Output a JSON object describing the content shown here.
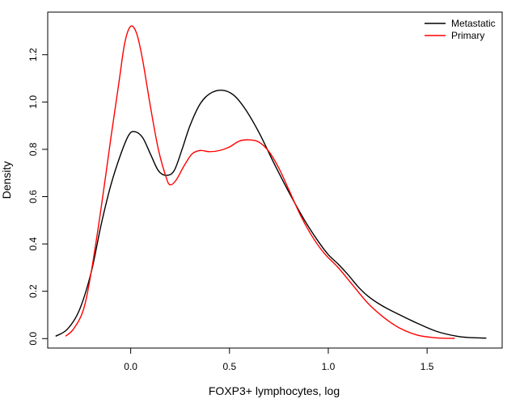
{
  "chart_data": {
    "type": "line",
    "title": "",
    "xlabel": "FOXP3+ lymphocytes, log",
    "ylabel": "Density",
    "xlim": [
      -0.42,
      1.88
    ],
    "ylim": [
      -0.04,
      1.38
    ],
    "x_ticks": [
      0.0,
      0.5,
      1.0,
      1.5
    ],
    "x_tick_labels": [
      "0.0",
      "0.5",
      "1.0",
      "1.5"
    ],
    "y_ticks": [
      0.0,
      0.2,
      0.4,
      0.6,
      0.8,
      1.0,
      1.2
    ],
    "y_tick_labels": [
      "0.0",
      "0.2",
      "0.4",
      "0.6",
      "0.8",
      "1.0",
      "1.2"
    ],
    "grid": false,
    "legend_position": "top-right",
    "series": [
      {
        "name": "Metastatic",
        "color": "#000000",
        "points": [
          [
            -0.38,
            0.01
          ],
          [
            -0.32,
            0.04
          ],
          [
            -0.26,
            0.12
          ],
          [
            -0.2,
            0.28
          ],
          [
            -0.15,
            0.48
          ],
          [
            -0.1,
            0.65
          ],
          [
            -0.05,
            0.78
          ],
          [
            -0.01,
            0.86
          ],
          [
            0.02,
            0.875
          ],
          [
            0.06,
            0.85
          ],
          [
            0.1,
            0.78
          ],
          [
            0.14,
            0.71
          ],
          [
            0.18,
            0.69
          ],
          [
            0.22,
            0.71
          ],
          [
            0.26,
            0.8
          ],
          [
            0.3,
            0.9
          ],
          [
            0.35,
            0.99
          ],
          [
            0.4,
            1.035
          ],
          [
            0.46,
            1.05
          ],
          [
            0.52,
            1.03
          ],
          [
            0.58,
            0.97
          ],
          [
            0.65,
            0.87
          ],
          [
            0.72,
            0.75
          ],
          [
            0.8,
            0.62
          ],
          [
            0.88,
            0.5
          ],
          [
            0.95,
            0.41
          ],
          [
            1.0,
            0.355
          ],
          [
            1.05,
            0.315
          ],
          [
            1.1,
            0.27
          ],
          [
            1.15,
            0.22
          ],
          [
            1.2,
            0.18
          ],
          [
            1.27,
            0.14
          ],
          [
            1.35,
            0.105
          ],
          [
            1.45,
            0.065
          ],
          [
            1.55,
            0.03
          ],
          [
            1.65,
            0.01
          ],
          [
            1.72,
            0.004
          ],
          [
            1.8,
            0.002
          ]
        ]
      },
      {
        "name": "Primary",
        "color": "#ff0000",
        "points": [
          [
            -0.33,
            0.01
          ],
          [
            -0.29,
            0.04
          ],
          [
            -0.24,
            0.12
          ],
          [
            -0.2,
            0.28
          ],
          [
            -0.15,
            0.55
          ],
          [
            -0.1,
            0.85
          ],
          [
            -0.06,
            1.08
          ],
          [
            -0.03,
            1.25
          ],
          [
            0.0,
            1.32
          ],
          [
            0.03,
            1.29
          ],
          [
            0.06,
            1.18
          ],
          [
            0.1,
            0.98
          ],
          [
            0.14,
            0.8
          ],
          [
            0.18,
            0.68
          ],
          [
            0.2,
            0.65
          ],
          [
            0.23,
            0.67
          ],
          [
            0.27,
            0.73
          ],
          [
            0.31,
            0.78
          ],
          [
            0.35,
            0.795
          ],
          [
            0.4,
            0.79
          ],
          [
            0.45,
            0.795
          ],
          [
            0.5,
            0.81
          ],
          [
            0.55,
            0.835
          ],
          [
            0.6,
            0.84
          ],
          [
            0.65,
            0.83
          ],
          [
            0.7,
            0.79
          ],
          [
            0.75,
            0.72
          ],
          [
            0.8,
            0.63
          ],
          [
            0.86,
            0.52
          ],
          [
            0.92,
            0.43
          ],
          [
            0.98,
            0.36
          ],
          [
            1.05,
            0.3
          ],
          [
            1.12,
            0.23
          ],
          [
            1.2,
            0.15
          ],
          [
            1.28,
            0.09
          ],
          [
            1.36,
            0.045
          ],
          [
            1.45,
            0.015
          ],
          [
            1.55,
            0.003
          ],
          [
            1.64,
            0.001
          ]
        ]
      }
    ]
  }
}
